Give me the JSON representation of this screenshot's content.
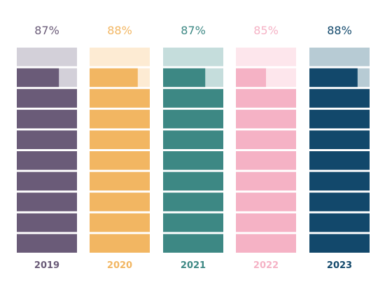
{
  "chart_data": {
    "type": "bar",
    "style": "stacked-block percentage columns",
    "categories": [
      "2019",
      "2020",
      "2021",
      "2022",
      "2023"
    ],
    "values": [
      87,
      88,
      87,
      85,
      88
    ],
    "labels": [
      "87%",
      "88%",
      "87%",
      "85%",
      "88%"
    ],
    "ylim": [
      0,
      100
    ],
    "colors": {
      "2019": {
        "filled": "#6a5b78",
        "empty": "#d3d0d9"
      },
      "2020": {
        "filled": "#f2b662",
        "empty": "#fdebd3"
      },
      "2021": {
        "filled": "#3d8884",
        "empty": "#c5dddc"
      },
      "2022": {
        "filled": "#f5b2c5",
        "empty": "#fde6ec"
      },
      "2023": {
        "filled": "#12486b",
        "empty": "#b7cbd4"
      }
    }
  }
}
